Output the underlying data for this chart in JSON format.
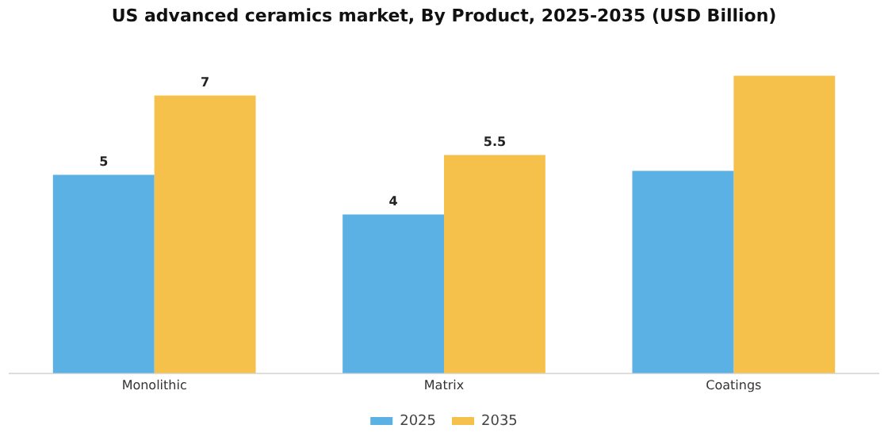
{
  "chart_data": {
    "type": "bar",
    "title": "US advanced ceramics market, By Product, 2025-2035 (USD Billion)",
    "categories": [
      "Monolithic",
      "Matrix",
      "Coatings"
    ],
    "series": [
      {
        "name": "2025",
        "color": "#5cb1e4",
        "values": [
          5,
          4,
          5.1
        ],
        "value_labels": [
          "5",
          "4",
          null
        ]
      },
      {
        "name": "2035",
        "color": "#f6c14b",
        "values": [
          7,
          5.5,
          7.5
        ],
        "value_labels": [
          "7",
          "5.5",
          null
        ]
      }
    ],
    "legend": "bottom",
    "grid": false
  }
}
